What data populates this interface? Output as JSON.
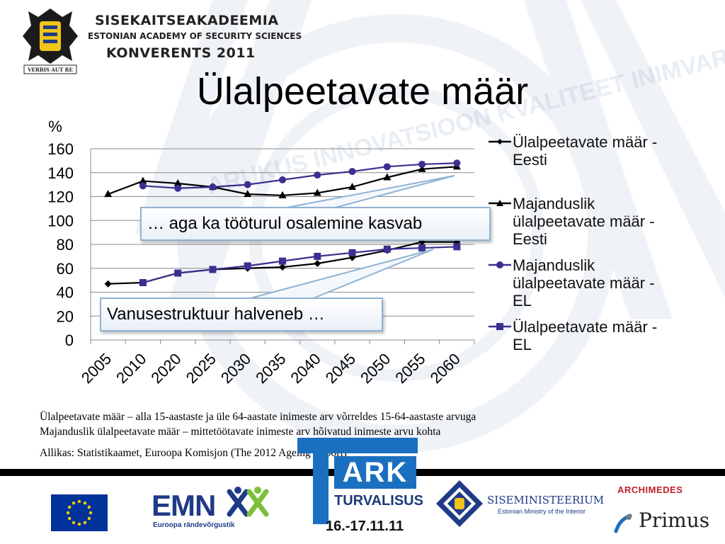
{
  "header": {
    "org_name": "SISEKAITSEAKADEEMIA",
    "org_name_en": "ESTONIAN ACADEMY OF SECURITY SCIENCES",
    "conference": "KONVERENTS 2011",
    "motto": "VERBIS AUT RE"
  },
  "watermark": {
    "text": "ARUKUS INNOVATSIOON KVALITEET INIMVARA"
  },
  "slide": {
    "title": "Ülalpeetavate määr"
  },
  "chart_data": {
    "type": "line",
    "title": "",
    "xlabel": "",
    "ylabel": "%",
    "ylim": [
      0,
      160
    ],
    "yticks": [
      0,
      20,
      40,
      60,
      80,
      100,
      120,
      140,
      160
    ],
    "categories": [
      "2005",
      "2010",
      "2020",
      "2025",
      "2030",
      "2035",
      "2040",
      "2045",
      "2050",
      "2055",
      "2060"
    ],
    "grid": "horizontal",
    "legend_position": "right",
    "series": [
      {
        "name": "Ülalpeetavate määr - Eesti",
        "marker": "diamond",
        "color": "#000000",
        "values": [
          47,
          48,
          56,
          59,
          60,
          61,
          64,
          69,
          75,
          82,
          82
        ]
      },
      {
        "name": "Majanduslik ülalpeetavate määr - Eesti",
        "marker": "triangle",
        "color": "#000000",
        "values": [
          122,
          133,
          131,
          128,
          122,
          121,
          123,
          128,
          136,
          143,
          145
        ]
      },
      {
        "name": "Majanduslik ülalpeetavate määr - EL",
        "marker": "circle",
        "color": "#3b2f8f",
        "values": [
          null,
          129,
          127,
          128,
          130,
          134,
          138,
          141,
          145,
          147,
          148
        ]
      },
      {
        "name": "Ülalpeetavate määr - EL",
        "marker": "square",
        "color": "#3b2f8f",
        "values": [
          null,
          48,
          56,
          59,
          62,
          66,
          70,
          73,
          76,
          77,
          78
        ]
      }
    ],
    "annotations": [
      "… aga ka tööturul osalemine kasvab",
      "Vanusestruktuur halveneb …"
    ]
  },
  "legend": {
    "items": [
      "Ülalpeetavate määr -\nEesti",
      "Majanduslik\nülalpeetavate määr -\nEesti",
      "Majanduslik\nülalpeetavate määr -\nEL",
      "Ülalpeetavate määr -\nEL"
    ]
  },
  "notes": {
    "line1": "Ülalpeetavate määr – alla 15-aastaste ja üle 64-aastate inimeste arv võrreldes 15-64-aastaste arvuga",
    "line2": "Majanduslik ülalpeetavate määr – mittetöötavate inimeste arv hõivatud inimeste arvu kohta",
    "source": "Allikas: Statistikaamet, Euroopa Komisjon (The 2012 Ageing Report)"
  },
  "footer": {
    "emn": "EMN",
    "emn_sub": "Euroopa rändevõrgustik",
    "tark_ark": "ARK",
    "tark_turvalisus": "TURVALISUS",
    "tark_dates": "16.-17.11.11",
    "sise_name": "SISEMINISTEERIUM",
    "sise_sub": "Estonian Ministry of the Interior",
    "archimedes": "ARCHIMEDES",
    "primus": "Primus"
  },
  "colors": {
    "series_dark": "#000000",
    "series_purple": "#3b2f8f",
    "callout_border": "#8fb2d4",
    "tark_blue": "#1b6fbf",
    "emn_blue": "#1f3b87",
    "archimedes_red": "#c0202a"
  }
}
